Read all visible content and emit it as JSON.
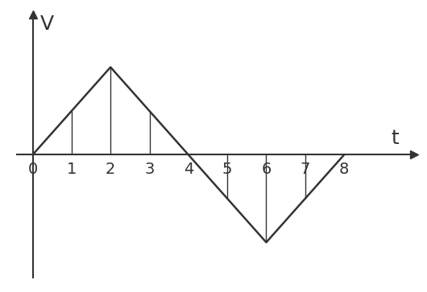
{
  "chart_data": {
    "type": "line",
    "x": [
      0,
      1,
      2,
      3,
      4,
      5,
      6,
      7,
      8
    ],
    "values": [
      0,
      0.5,
      1,
      0.5,
      0,
      -0.5,
      -1,
      -0.5,
      0
    ],
    "x_label": "t",
    "y_label": "V",
    "xlim": [
      -0.4,
      9.8
    ],
    "ylim": [
      -1.4,
      1.6
    ],
    "xticks": [
      0,
      1,
      2,
      3,
      4,
      5,
      6,
      7,
      8
    ],
    "tick_labels": "x",
    "color": "#333333"
  }
}
